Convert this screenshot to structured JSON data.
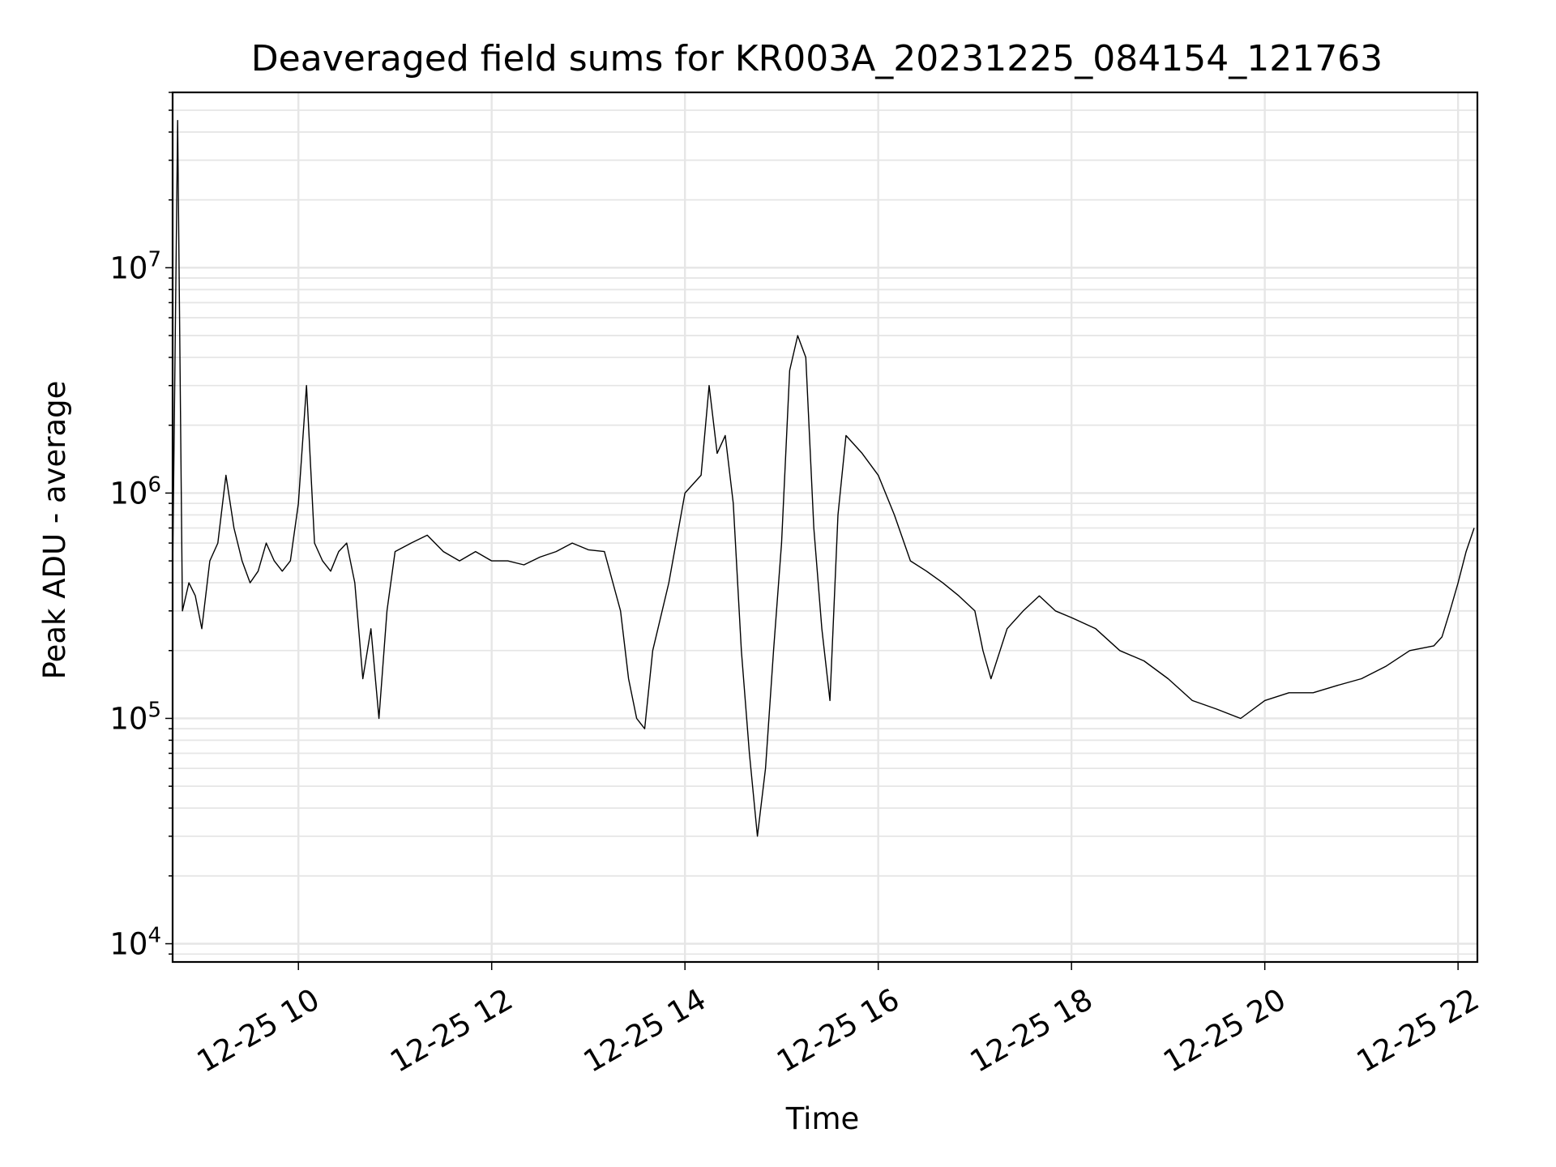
{
  "chart_data": {
    "type": "line",
    "title": "Deaveraged field sums for KR003A_20231225_084154_121763",
    "xlabel": "Time",
    "ylabel": "Peak ADU - average",
    "y_scale": "log",
    "ylim": [
      8300,
      60000000
    ],
    "xlim": [
      "2023-12-25 08:41:54",
      "2023-12-25 22:12:00"
    ],
    "grid": true,
    "line_color": "#000000",
    "x_ticks": [
      "12-25 10",
      "12-25 12",
      "12-25 14",
      "12-25 16",
      "12-25 18",
      "12-25 20",
      "12-25 22"
    ],
    "y_ticks": [
      {
        "value": 10000,
        "base": "10",
        "exp": "4"
      },
      {
        "value": 100000,
        "base": "10",
        "exp": "5"
      },
      {
        "value": 1000000,
        "base": "10",
        "exp": "6"
      },
      {
        "value": 10000000,
        "base": "10",
        "exp": "7"
      }
    ],
    "series": [
      {
        "x": [
          "2023-12-25 08:42",
          "2023-12-25 08:45",
          "2023-12-25 08:48",
          "2023-12-25 08:52",
          "2023-12-25 08:56",
          "2023-12-25 09:00",
          "2023-12-25 09:05",
          "2023-12-25 09:10",
          "2023-12-25 09:15",
          "2023-12-25 09:20",
          "2023-12-25 09:25",
          "2023-12-25 09:30",
          "2023-12-25 09:35",
          "2023-12-25 09:40",
          "2023-12-25 09:45",
          "2023-12-25 09:50",
          "2023-12-25 09:55",
          "2023-12-25 10:00",
          "2023-12-25 10:05",
          "2023-12-25 10:10",
          "2023-12-25 10:15",
          "2023-12-25 10:20",
          "2023-12-25 10:25",
          "2023-12-25 10:30",
          "2023-12-25 10:35",
          "2023-12-25 10:40",
          "2023-12-25 10:45",
          "2023-12-25 10:50",
          "2023-12-25 10:55",
          "2023-12-25 11:00",
          "2023-12-25 11:10",
          "2023-12-25 11:20",
          "2023-12-25 11:30",
          "2023-12-25 11:40",
          "2023-12-25 11:50",
          "2023-12-25 12:00",
          "2023-12-25 12:10",
          "2023-12-25 12:20",
          "2023-12-25 12:30",
          "2023-12-25 12:40",
          "2023-12-25 12:50",
          "2023-12-25 13:00",
          "2023-12-25 13:10",
          "2023-12-25 13:20",
          "2023-12-25 13:25",
          "2023-12-25 13:30",
          "2023-12-25 13:35",
          "2023-12-25 13:40",
          "2023-12-25 13:50",
          "2023-12-25 14:00",
          "2023-12-25 14:10",
          "2023-12-25 14:15",
          "2023-12-25 14:20",
          "2023-12-25 14:25",
          "2023-12-25 14:30",
          "2023-12-25 14:35",
          "2023-12-25 14:40",
          "2023-12-25 14:45",
          "2023-12-25 14:50",
          "2023-12-25 14:55",
          "2023-12-25 15:00",
          "2023-12-25 15:05",
          "2023-12-25 15:10",
          "2023-12-25 15:15",
          "2023-12-25 15:20",
          "2023-12-25 15:25",
          "2023-12-25 15:30",
          "2023-12-25 15:35",
          "2023-12-25 15:40",
          "2023-12-25 15:50",
          "2023-12-25 16:00",
          "2023-12-25 16:10",
          "2023-12-25 16:20",
          "2023-12-25 16:30",
          "2023-12-25 16:40",
          "2023-12-25 16:50",
          "2023-12-25 17:00",
          "2023-12-25 17:05",
          "2023-12-25 17:10",
          "2023-12-25 17:20",
          "2023-12-25 17:30",
          "2023-12-25 17:40",
          "2023-12-25 17:50",
          "2023-12-25 18:00",
          "2023-12-25 18:15",
          "2023-12-25 18:30",
          "2023-12-25 18:45",
          "2023-12-25 19:00",
          "2023-12-25 19:15",
          "2023-12-25 19:30",
          "2023-12-25 19:45",
          "2023-12-25 20:00",
          "2023-12-25 20:15",
          "2023-12-25 20:30",
          "2023-12-25 20:45",
          "2023-12-25 21:00",
          "2023-12-25 21:15",
          "2023-12-25 21:30",
          "2023-12-25 21:45",
          "2023-12-25 21:50",
          "2023-12-25 21:55",
          "2023-12-25 22:00",
          "2023-12-25 22:05",
          "2023-12-25 22:10"
        ],
        "values": [
          500000,
          45000000,
          300000,
          400000,
          350000,
          250000,
          500000,
          600000,
          1200000,
          700000,
          500000,
          400000,
          450000,
          600000,
          500000,
          450000,
          500000,
          900000,
          3000000,
          600000,
          500000,
          450000,
          550000,
          600000,
          400000,
          150000,
          250000,
          100000,
          300000,
          550000,
          600000,
          650000,
          550000,
          500000,
          550000,
          500000,
          500000,
          480000,
          520000,
          550000,
          600000,
          560000,
          550000,
          300000,
          150000,
          100000,
          90000,
          200000,
          400000,
          1000000,
          1200000,
          3000000,
          1500000,
          1800000,
          900000,
          200000,
          70000,
          30000,
          60000,
          200000,
          600000,
          3500000,
          5000000,
          4000000,
          700000,
          250000,
          120000,
          800000,
          1800000,
          1500000,
          1200000,
          800000,
          500000,
          450000,
          400000,
          350000,
          300000,
          200000,
          150000,
          250000,
          300000,
          350000,
          300000,
          280000,
          250000,
          200000,
          180000,
          150000,
          120000,
          110000,
          100000,
          120000,
          130000,
          130000,
          140000,
          150000,
          170000,
          200000,
          210000,
          230000,
          300000,
          400000,
          550000,
          700000
        ]
      }
    ]
  }
}
